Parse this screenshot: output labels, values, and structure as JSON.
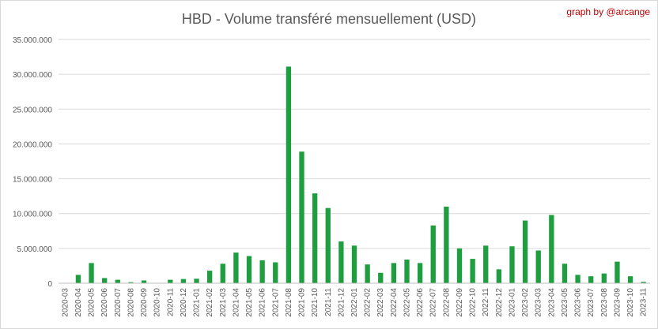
{
  "chart_data": {
    "type": "bar",
    "title": "HBD - Volume transféré mensuellement (USD)",
    "credit": "graph by @arcange",
    "xlabel": "",
    "ylabel": "",
    "ylim": [
      0,
      35000000
    ],
    "yticks": [
      0,
      5000000,
      10000000,
      15000000,
      20000000,
      25000000,
      30000000,
      35000000
    ],
    "ytick_labels": [
      "0",
      "5.000.000",
      "10.000.000",
      "15.000.000",
      "20.000.000",
      "25.000.000",
      "30.000.000",
      "35.000.000"
    ],
    "grid": true,
    "bar_color": "#1e9e3e",
    "categories": [
      "2020-03",
      "2020-04",
      "2020-05",
      "2020-06",
      "2020-07",
      "2020-08",
      "2020-09",
      "2020-10",
      "2020-11",
      "2020-12",
      "2021-01",
      "2021-02",
      "2021-03",
      "2021-04",
      "2021-05",
      "2021-06",
      "2021-07",
      "2021-08",
      "2021-09",
      "2021-10",
      "2021-11",
      "2021-12",
      "2022-01",
      "2022-02",
      "2022-03",
      "2022-04",
      "2022-05",
      "2022-06",
      "2022-07",
      "2022-08",
      "2022-09",
      "2022-10",
      "2022-11",
      "2022-12",
      "2023-01",
      "2023-02",
      "2023-03",
      "2023-04",
      "2023-05",
      "2023-06",
      "2023-07",
      "2023-08",
      "2023-09",
      "2023-10",
      "2023-11"
    ],
    "values": [
      0,
      1200000,
      2900000,
      750000,
      500000,
      150000,
      400000,
      0,
      500000,
      600000,
      650000,
      1800000,
      2800000,
      4400000,
      3900000,
      3300000,
      3000000,
      31100000,
      18900000,
      12900000,
      10800000,
      6000000,
      5400000,
      2700000,
      1500000,
      2900000,
      3400000,
      2900000,
      8300000,
      11000000,
      5000000,
      3500000,
      5400000,
      2000000,
      5300000,
      9000000,
      4700000,
      9800000,
      2800000,
      1200000,
      1000000,
      1400000,
      3100000,
      1000000,
      200000
    ]
  }
}
